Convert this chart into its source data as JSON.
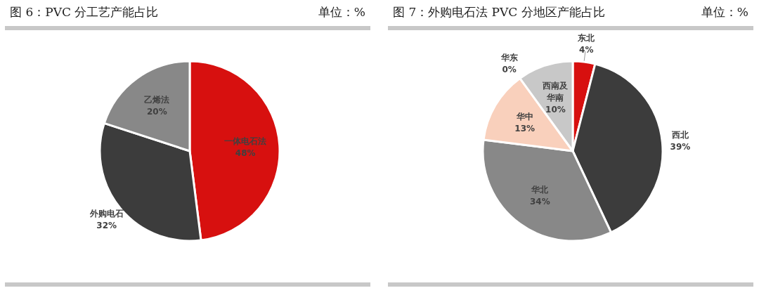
{
  "chart_data": [
    {
      "type": "pie",
      "title": "图 6：PVC 分工艺产能占比",
      "subtitle": "单位：%",
      "categories": [
        "一体电石法",
        "外购电石",
        "乙烯法"
      ],
      "values": [
        48,
        32,
        20
      ],
      "colors": [
        "#d7100f",
        "#3c3c3c",
        "#888888"
      ],
      "value_labels": [
        "48%",
        "32%",
        "20%"
      ]
    },
    {
      "type": "pie",
      "title": "图 7：外购电石法 PVC 分地区产能占比",
      "subtitle": "单位：%",
      "categories": [
        "东北",
        "西北",
        "华北",
        "华中",
        "华东",
        "西南及华南"
      ],
      "values": [
        4,
        39,
        34,
        13,
        0,
        10
      ],
      "colors": [
        "#d7100f",
        "#3c3c3c",
        "#888888",
        "#f9d0bc",
        "#f4b183",
        "#c8c8c8"
      ],
      "value_labels": [
        "4%",
        "39%",
        "34%",
        "13%",
        "0%",
        "10%"
      ]
    }
  ]
}
